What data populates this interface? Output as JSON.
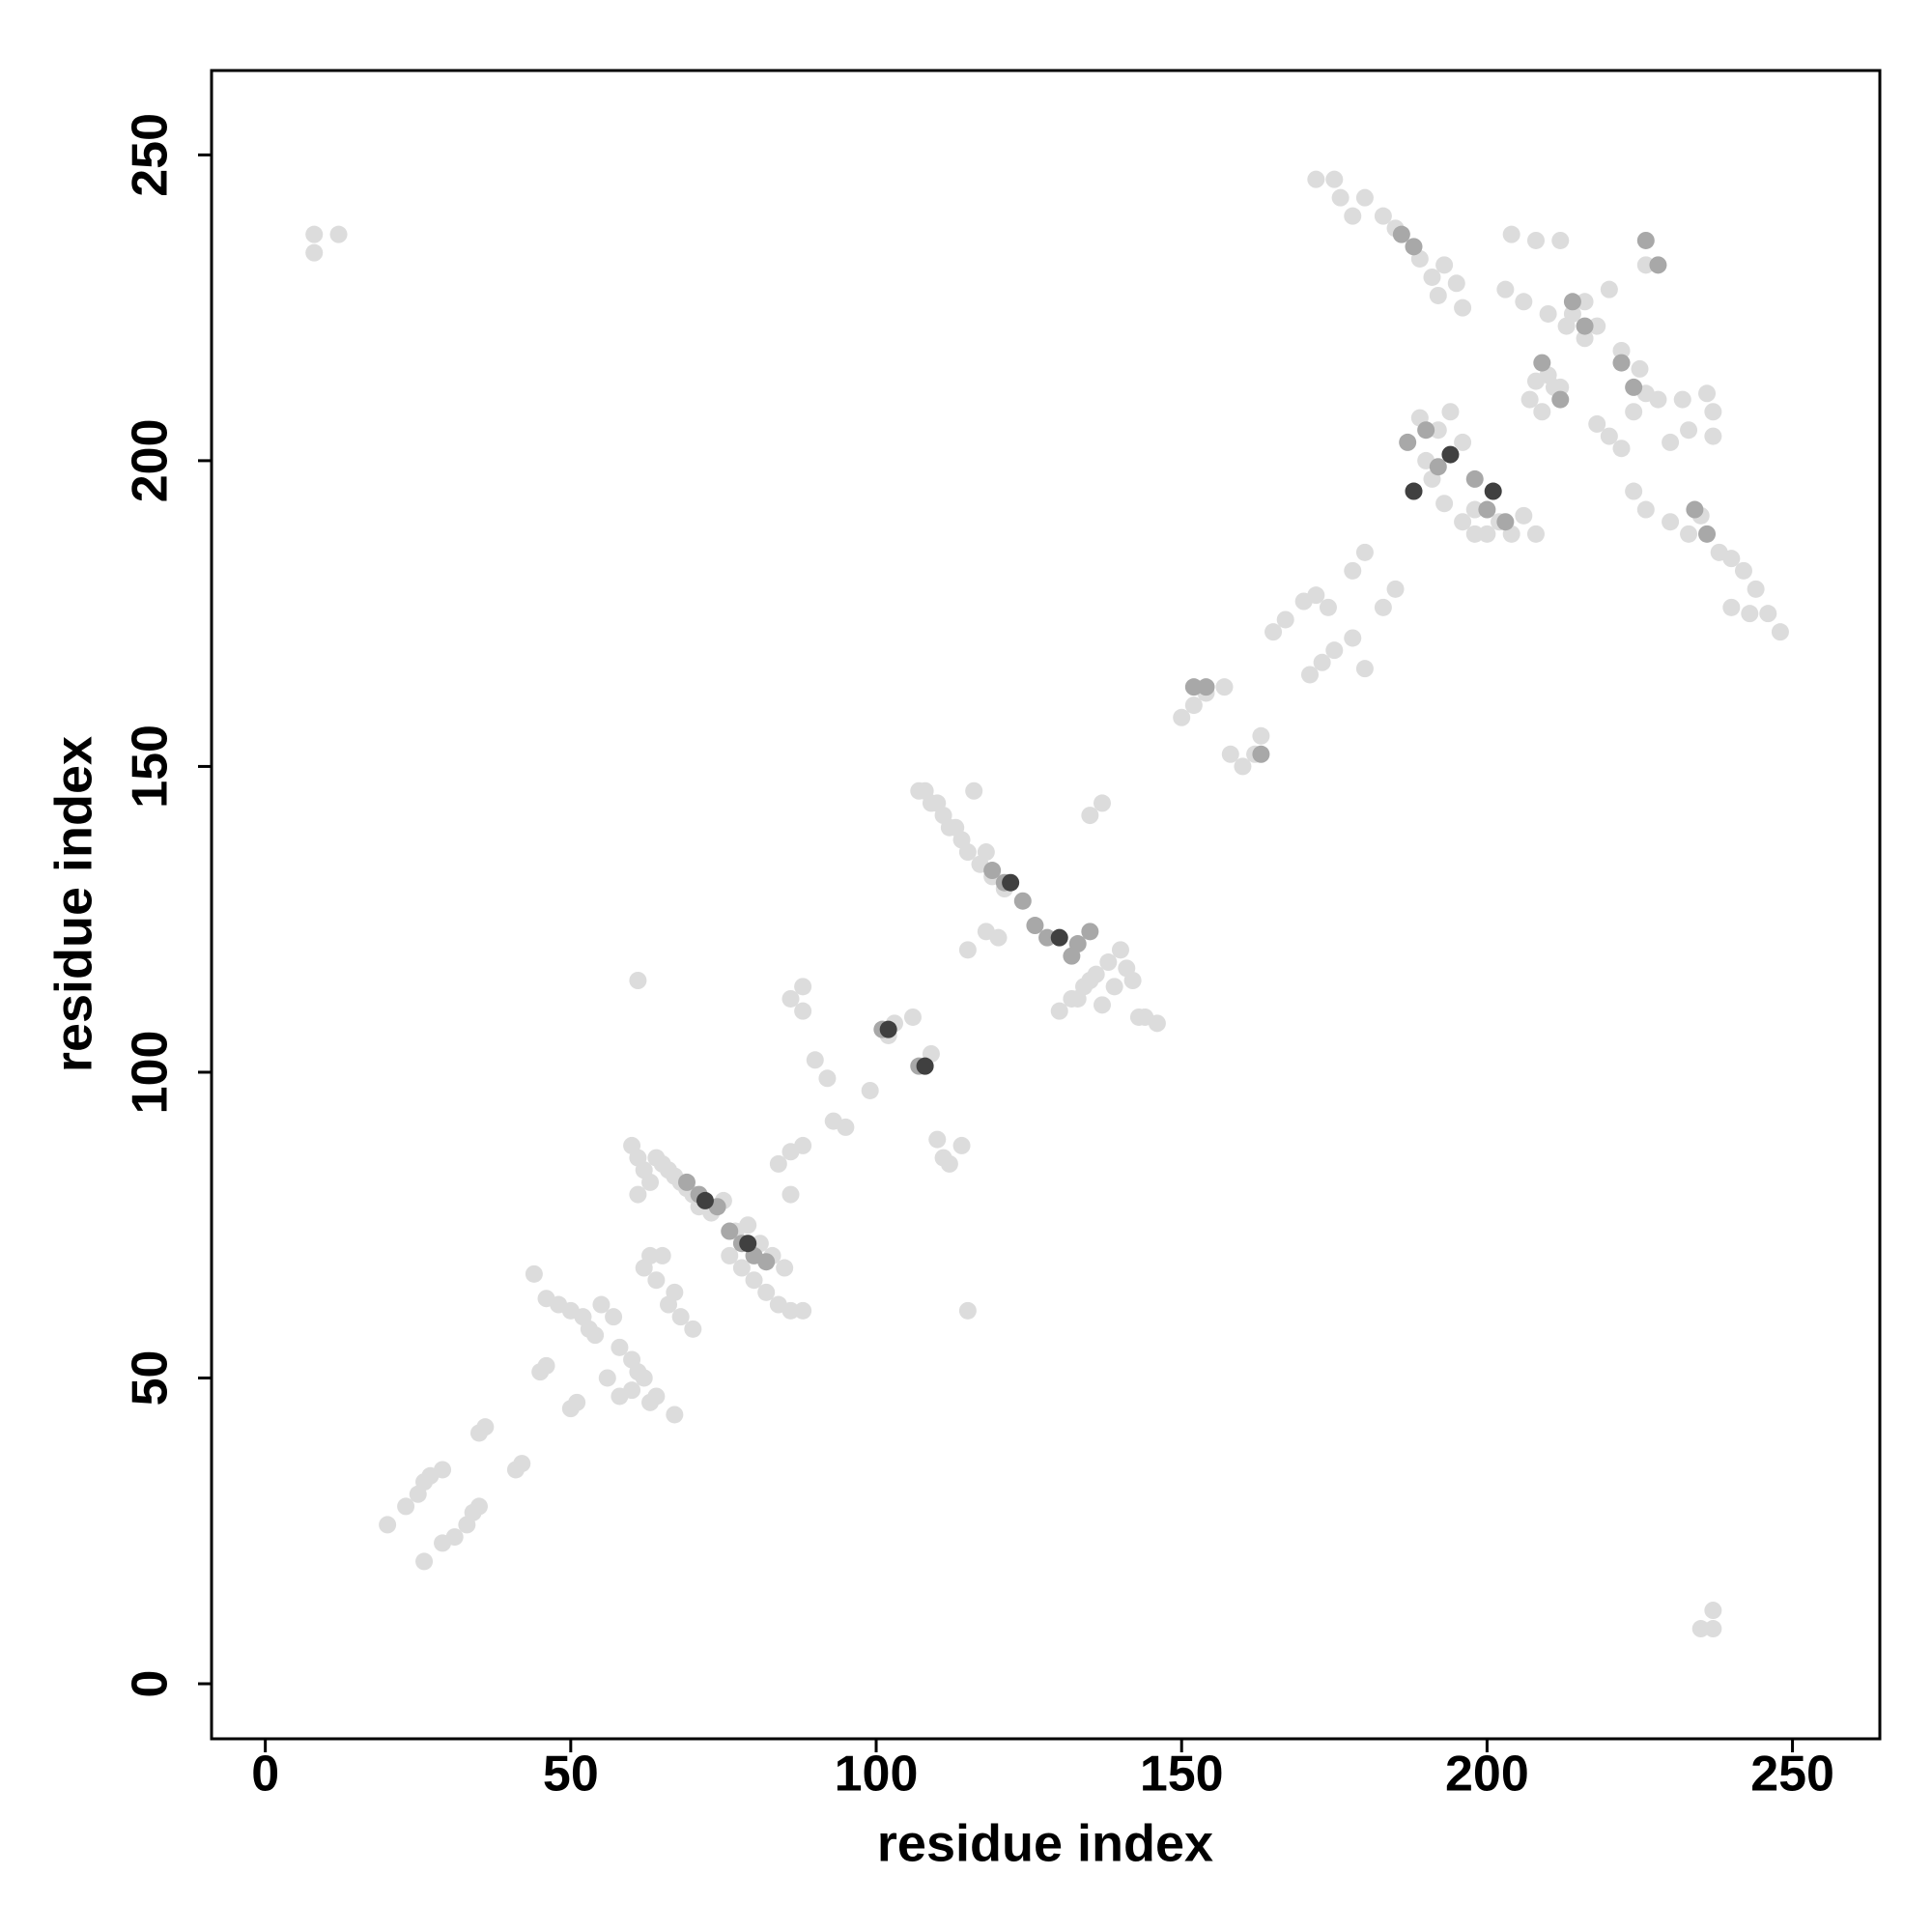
{
  "chart_data": {
    "type": "scatter",
    "x_label": "residue index",
    "y_label": "residue index",
    "xlim": [
      -8.8,
      264.3
    ],
    "ylim": [
      -9,
      263.8
    ],
    "xticks": [
      0,
      50,
      100,
      150,
      200,
      250
    ],
    "yticks": [
      0,
      50,
      100,
      150,
      200,
      250
    ],
    "grid": false,
    "series": [
      {
        "color": "#dcdcdc",
        "x": [
          8,
          12,
          8,
          235,
          237,
          237,
          20,
          23,
          25,
          26,
          27,
          29,
          26,
          29,
          31,
          33,
          34,
          35,
          35,
          36,
          42,
          41,
          45,
          46,
          50,
          51,
          44,
          46,
          48,
          50,
          52,
          53,
          54,
          55,
          57,
          58,
          60,
          61,
          62,
          60,
          63,
          64,
          67,
          58,
          56,
          62,
          63,
          65,
          64,
          66,
          67,
          68,
          70,
          60,
          61,
          62,
          64,
          66,
          68,
          70,
          61,
          63,
          65,
          67,
          69,
          71,
          73,
          75,
          76,
          78,
          80,
          82,
          84,
          86,
          88,
          77,
          79,
          81,
          83,
          85,
          84,
          86,
          88,
          86,
          61,
          115,
          86,
          88,
          88,
          90,
          92,
          93,
          95,
          99,
          102,
          103,
          106,
          109,
          110,
          111,
          112,
          114,
          107,
          109,
          111,
          113,
          115,
          117,
          119,
          121,
          108,
          110,
          112,
          114,
          116,
          118,
          120,
          115,
          118,
          130,
          132,
          134,
          136,
          138,
          140,
          142,
          144,
          146,
          133,
          135,
          137,
          139,
          141,
          143,
          135,
          137,
          150,
          152,
          154,
          157,
          160,
          162,
          163,
          158,
          165,
          167,
          170,
          172,
          174,
          178,
          180,
          171,
          173,
          175,
          178,
          180,
          183,
          185,
          172,
          175,
          176,
          178,
          180,
          183,
          185,
          189,
          191,
          192,
          193,
          195,
          196,
          188,
          190,
          192,
          194,
          196,
          189,
          191,
          193,
          198,
          196,
          198,
          200,
          202,
          204,
          206,
          208,
          204,
          208,
          212,
          203,
          206,
          210,
          213,
          216,
          210,
          212,
          208,
          218,
          220,
          222,
          224,
          226,
          228,
          225,
          222,
          226,
          214,
          216,
          218,
          220,
          207,
          209,
          211,
          224,
          226,
          230,
          233,
          235,
          238,
          240,
          242,
          244,
          246,
          248,
          240,
          243,
          236,
          237,
          237,
          233,
          230,
          232
        ],
        "y": [
          237,
          237,
          234,
          9,
          12,
          9,
          26,
          29,
          31,
          33,
          34,
          35,
          20,
          23,
          24,
          26,
          28,
          29,
          41,
          42,
          36,
          35,
          51,
          52,
          45,
          46,
          67,
          63,
          62,
          61,
          60,
          58,
          57,
          62,
          60,
          55,
          53,
          51,
          50,
          48,
          46,
          47,
          44,
          47,
          50,
          68,
          70,
          70,
          66,
          62,
          64,
          60,
          58,
          88,
          86,
          84,
          86,
          84,
          82,
          80,
          80,
          82,
          85,
          83,
          81,
          78,
          77,
          79,
          70,
          68,
          66,
          64,
          62,
          61,
          61,
          74,
          75,
          72,
          70,
          68,
          85,
          87,
          88,
          80,
          115,
          61,
          112,
          110,
          114,
          102,
          99,
          92,
          91,
          97,
          106,
          108,
          109,
          103,
          89,
          86,
          85,
          88,
          146,
          144,
          142,
          140,
          136,
          134,
          132,
          130,
          146,
          144,
          140,
          138,
          146,
          136,
          122,
          120,
          123,
          110,
          112,
          114,
          116,
          118,
          120,
          115,
          109,
          108,
          112,
          115,
          111,
          114,
          117,
          109,
          142,
          144,
          158,
          160,
          162,
          163,
          150,
          152,
          155,
          152,
          172,
          174,
          177,
          178,
          176,
          182,
          185,
          165,
          167,
          169,
          171,
          166,
          176,
          179,
          246,
          246,
          243,
          240,
          243,
          240,
          238,
          233,
          230,
          227,
          232,
          229,
          225,
          195,
          200,
          205,
          208,
          203,
          207,
          197,
          193,
          188,
          190,
          192,
          188,
          190,
          188,
          191,
          188,
          237,
          236,
          236,
          228,
          226,
          224,
          222,
          220,
          214,
          212,
          213,
          206,
          204,
          202,
          208,
          211,
          210,
          215,
          218,
          232,
          224,
          226,
          222,
          228,
          210,
          208,
          212,
          195,
          192,
          190,
          188,
          191,
          185,
          184,
          182,
          179,
          175,
          172,
          176,
          175,
          211,
          208,
          204,
          205,
          203,
          210
        ]
      },
      {
        "color": "#a8a8a8",
        "x": [
          69,
          71,
          74,
          76,
          78,
          80,
          82,
          119,
          121,
          124,
          126,
          128,
          132,
          133,
          135,
          101,
          107,
          152,
          154,
          163,
          187,
          190,
          192,
          198,
          200,
          203,
          186,
          188,
          214,
          216,
          222,
          224,
          226,
          228,
          234,
          236,
          209,
          212
        ],
        "y": [
          82,
          80,
          78,
          74,
          72,
          70,
          69,
          133,
          131,
          128,
          124,
          122,
          119,
          121,
          123,
          107,
          101,
          163,
          163,
          152,
          203,
          205,
          199,
          197,
          192,
          190,
          237,
          235,
          226,
          222,
          216,
          212,
          236,
          232,
          192,
          188,
          216,
          210
        ]
      },
      {
        "color": "#404040",
        "x": [
          72,
          79,
          122,
          130,
          102,
          108,
          194,
          201,
          188
        ],
        "y": [
          79,
          72,
          131,
          122,
          107,
          101,
          201,
          195,
          195
        ]
      }
    ]
  }
}
